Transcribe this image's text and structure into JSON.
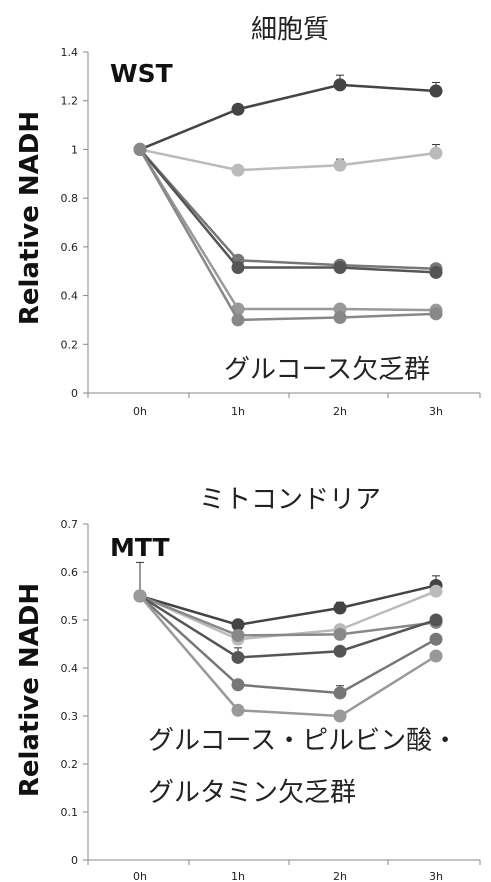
{
  "chart_data": [
    {
      "type": "line",
      "title": "細胞質",
      "panel_label": "WST",
      "ylabel": "Relative NADH",
      "xlabel": "",
      "categories": [
        "0h",
        "1h",
        "2h",
        "3h"
      ],
      "ylim": [
        0,
        1.4
      ],
      "yticks": [
        "0",
        "0.2",
        "0.4",
        "0.6",
        "0.8",
        "1",
        "1.2",
        "1.4"
      ],
      "annotation": "グルコース欠乏群",
      "grid": false,
      "series": [
        {
          "values": [
            1.0,
            1.165,
            1.265,
            1.24
          ],
          "color": "#444444",
          "err": [
            0,
            0.01,
            0.04,
            0.035
          ]
        },
        {
          "values": [
            1.0,
            0.915,
            0.935,
            0.985
          ],
          "color": "#bbbbbb",
          "err": [
            0,
            0.01,
            0.025,
            0.035
          ]
        },
        {
          "values": [
            1.0,
            0.545,
            0.525,
            0.51
          ],
          "color": "#777777",
          "err": [
            0,
            0,
            0,
            0
          ]
        },
        {
          "values": [
            1.0,
            0.515,
            0.515,
            0.495
          ],
          "color": "#555555",
          "err": [
            0,
            0,
            0,
            0
          ]
        },
        {
          "values": [
            1.0,
            0.345,
            0.345,
            0.34
          ],
          "color": "#999999",
          "err": [
            0,
            0,
            0,
            0
          ]
        },
        {
          "values": [
            1.0,
            0.3,
            0.31,
            0.325
          ],
          "color": "#888888",
          "err": [
            0,
            0,
            0,
            0
          ]
        }
      ]
    },
    {
      "type": "line",
      "title": "ミトコンドリア",
      "panel_label": "MTT",
      "ylabel": "Relative NADH",
      "xlabel": "",
      "categories": [
        "0h",
        "1h",
        "2h",
        "3h"
      ],
      "ylim": [
        0,
        0.7
      ],
      "yticks": [
        "0",
        "0.1",
        "0.2",
        "0.3",
        "0.4",
        "0.5",
        "0.6",
        "0.7"
      ],
      "annotation_lines": [
        "グルコース・ピルビン酸・",
        "グルタミン欠乏群"
      ],
      "grid": false,
      "series": [
        {
          "values": [
            0.55,
            0.49,
            0.525,
            0.572
          ],
          "color": "#444444",
          "err": [
            0.07,
            0.01,
            0.012,
            0.02
          ]
        },
        {
          "values": [
            0.55,
            0.46,
            0.48,
            0.56
          ],
          "color": "#bbbbbb",
          "err": [
            0,
            0,
            0,
            0
          ]
        },
        {
          "values": [
            0.55,
            0.468,
            0.47,
            0.495
          ],
          "color": "#888888",
          "err": [
            0,
            0,
            0,
            0
          ]
        },
        {
          "values": [
            0.55,
            0.422,
            0.435,
            0.5
          ],
          "color": "#555555",
          "err": [
            0,
            0.02,
            0,
            0
          ]
        },
        {
          "values": [
            0.55,
            0.365,
            0.348,
            0.46
          ],
          "color": "#777777",
          "err": [
            0,
            0,
            0.015,
            0
          ]
        },
        {
          "values": [
            0.55,
            0.312,
            0.3,
            0.425
          ],
          "color": "#999999",
          "err": [
            0,
            0,
            0,
            0
          ]
        }
      ]
    }
  ]
}
